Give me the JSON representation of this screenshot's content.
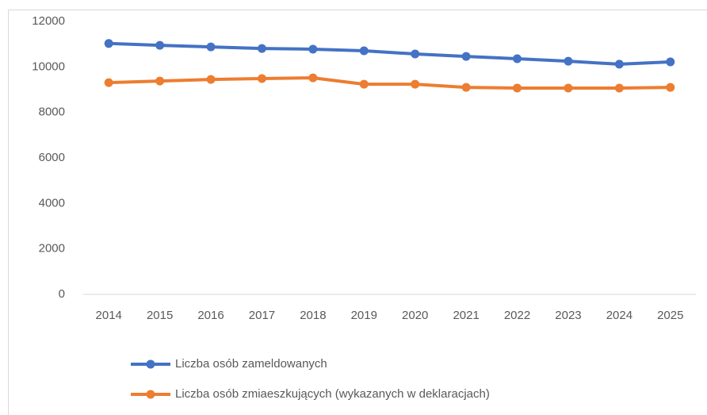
{
  "chart_data": {
    "type": "line",
    "categories": [
      "2014",
      "2015",
      "2016",
      "2017",
      "2018",
      "2019",
      "2020",
      "2021",
      "2022",
      "2023",
      "2024",
      "2025"
    ],
    "series": [
      {
        "name": "Liczba osób zameldowanych",
        "color": "#4472c4",
        "values": [
          11030,
          10950,
          10880,
          10810,
          10780,
          10710,
          10570,
          10460,
          10360,
          10250,
          10120,
          10220
        ]
      },
      {
        "name": "Liczba osób zmiaeszkujących (wykazanych w deklaracjach)",
        "color": "#ed7d31",
        "values": [
          9310,
          9380,
          9450,
          9490,
          9520,
          9240,
          9240,
          9100,
          9070,
          9070,
          9070,
          9100
        ]
      }
    ],
    "ylim": [
      0,
      12000
    ],
    "yticks": [
      0,
      2000,
      4000,
      6000,
      8000,
      10000,
      12000
    ],
    "grid": false,
    "legend": "bottom"
  }
}
